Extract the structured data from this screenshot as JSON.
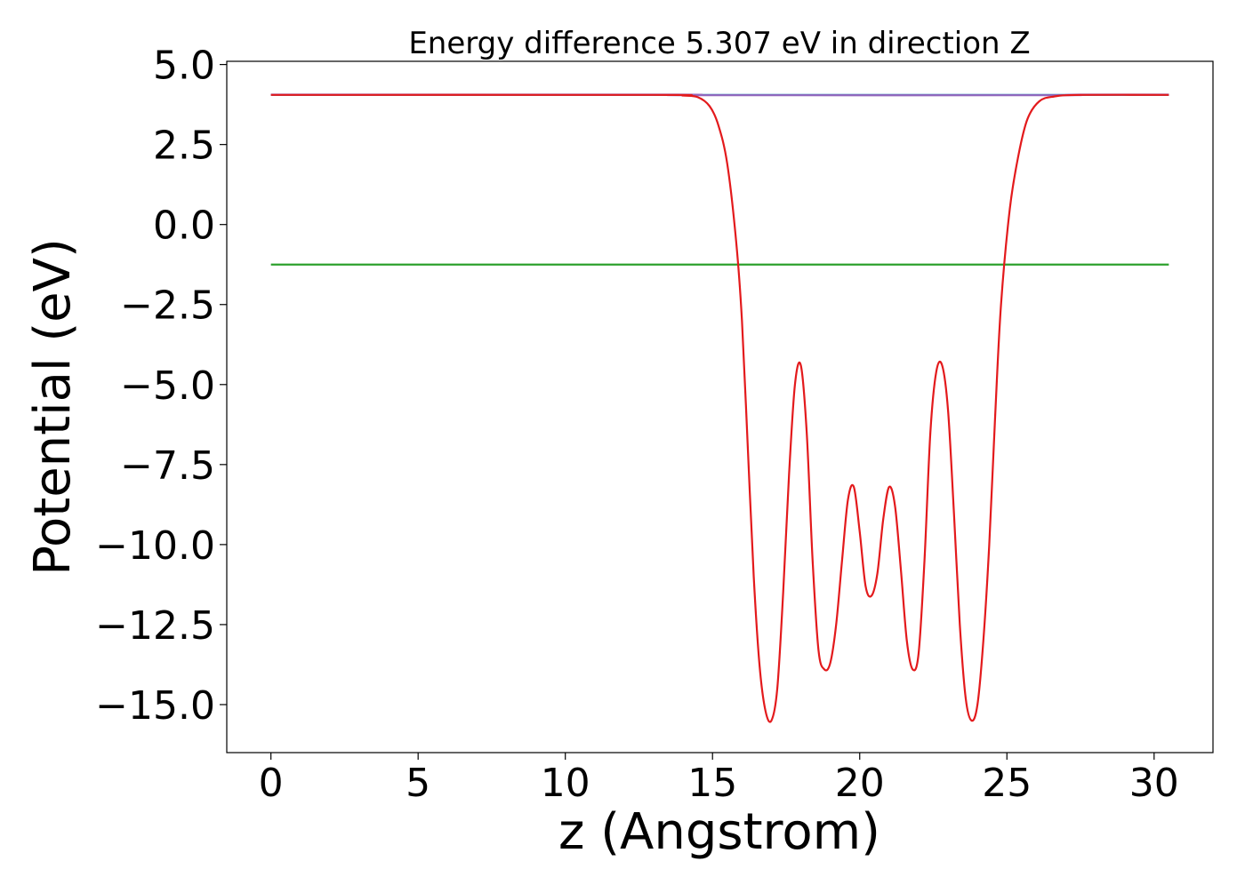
{
  "chart_data": {
    "type": "line",
    "title": "Energy difference 5.307 eV in direction Z",
    "xlabel": "z (Angstrom)",
    "ylabel": "Potential (eV)",
    "xlim": [
      -1.5,
      32.0
    ],
    "ylim": [
      -16.5,
      5.1
    ],
    "x_ticks": [
      0,
      5,
      10,
      15,
      20,
      25,
      30
    ],
    "x_tick_labels": [
      "0",
      "5",
      "10",
      "15",
      "20",
      "25",
      "30"
    ],
    "y_ticks": [
      5.0,
      2.5,
      0.0,
      -2.5,
      -5.0,
      -7.5,
      -10.0,
      -12.5,
      -15.0
    ],
    "y_tick_labels": [
      "5.0",
      "2.5",
      "0.0",
      "−2.5",
      "−5.0",
      "−7.5",
      "−10.0",
      "−12.5",
      "−15.0"
    ],
    "grid": false,
    "legend": "none",
    "series": [
      {
        "color": "#1f77b4",
        "x": [
          0,
          30.5
        ],
        "y": [
          4.05,
          4.05
        ]
      },
      {
        "color": "#2ca02c",
        "x": [
          0,
          30.5
        ],
        "y": [
          -1.25,
          -1.25
        ]
      },
      {
        "color": "#9467bd",
        "x": [
          0,
          13.5,
          14.0,
          14.5,
          26.5,
          27.0,
          27.5,
          30.5
        ],
        "y": [
          4.06,
          4.06,
          4.05,
          4.04,
          4.04,
          4.05,
          4.06,
          4.06
        ]
      },
      {
        "color": "#e31a1c",
        "x": [
          0,
          13.0,
          14.0,
          14.5,
          14.9,
          15.2,
          15.5,
          15.8,
          16.0,
          16.2,
          16.4,
          16.6,
          16.8,
          17.0,
          17.2,
          17.4,
          17.6,
          17.8,
          18.0,
          18.2,
          18.4,
          18.6,
          18.8,
          19.0,
          19.2,
          19.4,
          19.6,
          19.8,
          20.0,
          20.2,
          20.4,
          20.6,
          20.8,
          21.0,
          21.2,
          21.4,
          21.6,
          21.8,
          22.0,
          22.2,
          22.4,
          22.6,
          22.8,
          23.0,
          23.2,
          23.4,
          23.6,
          23.8,
          24.0,
          24.2,
          24.4,
          24.6,
          24.8,
          25.1,
          25.4,
          25.7,
          26.1,
          26.6,
          27.5,
          30.5
        ],
        "y": [
          4.05,
          4.05,
          4.03,
          3.98,
          3.7,
          3.1,
          1.9,
          -0.5,
          -3.0,
          -7.0,
          -11.0,
          -13.8,
          -15.2,
          -15.5,
          -14.5,
          -11.5,
          -7.8,
          -5.0,
          -4.4,
          -6.5,
          -10.5,
          -13.3,
          -13.9,
          -13.7,
          -12.5,
          -10.5,
          -8.6,
          -8.2,
          -9.6,
          -11.3,
          -11.6,
          -10.9,
          -9.2,
          -8.2,
          -8.8,
          -10.8,
          -13.0,
          -13.9,
          -13.4,
          -10.5,
          -6.5,
          -4.6,
          -4.4,
          -5.8,
          -9.0,
          -12.5,
          -14.8,
          -15.5,
          -15.0,
          -13.0,
          -10.0,
          -6.0,
          -2.5,
          0.5,
          2.2,
          3.3,
          3.85,
          4.0,
          4.05,
          4.05
        ]
      }
    ]
  }
}
